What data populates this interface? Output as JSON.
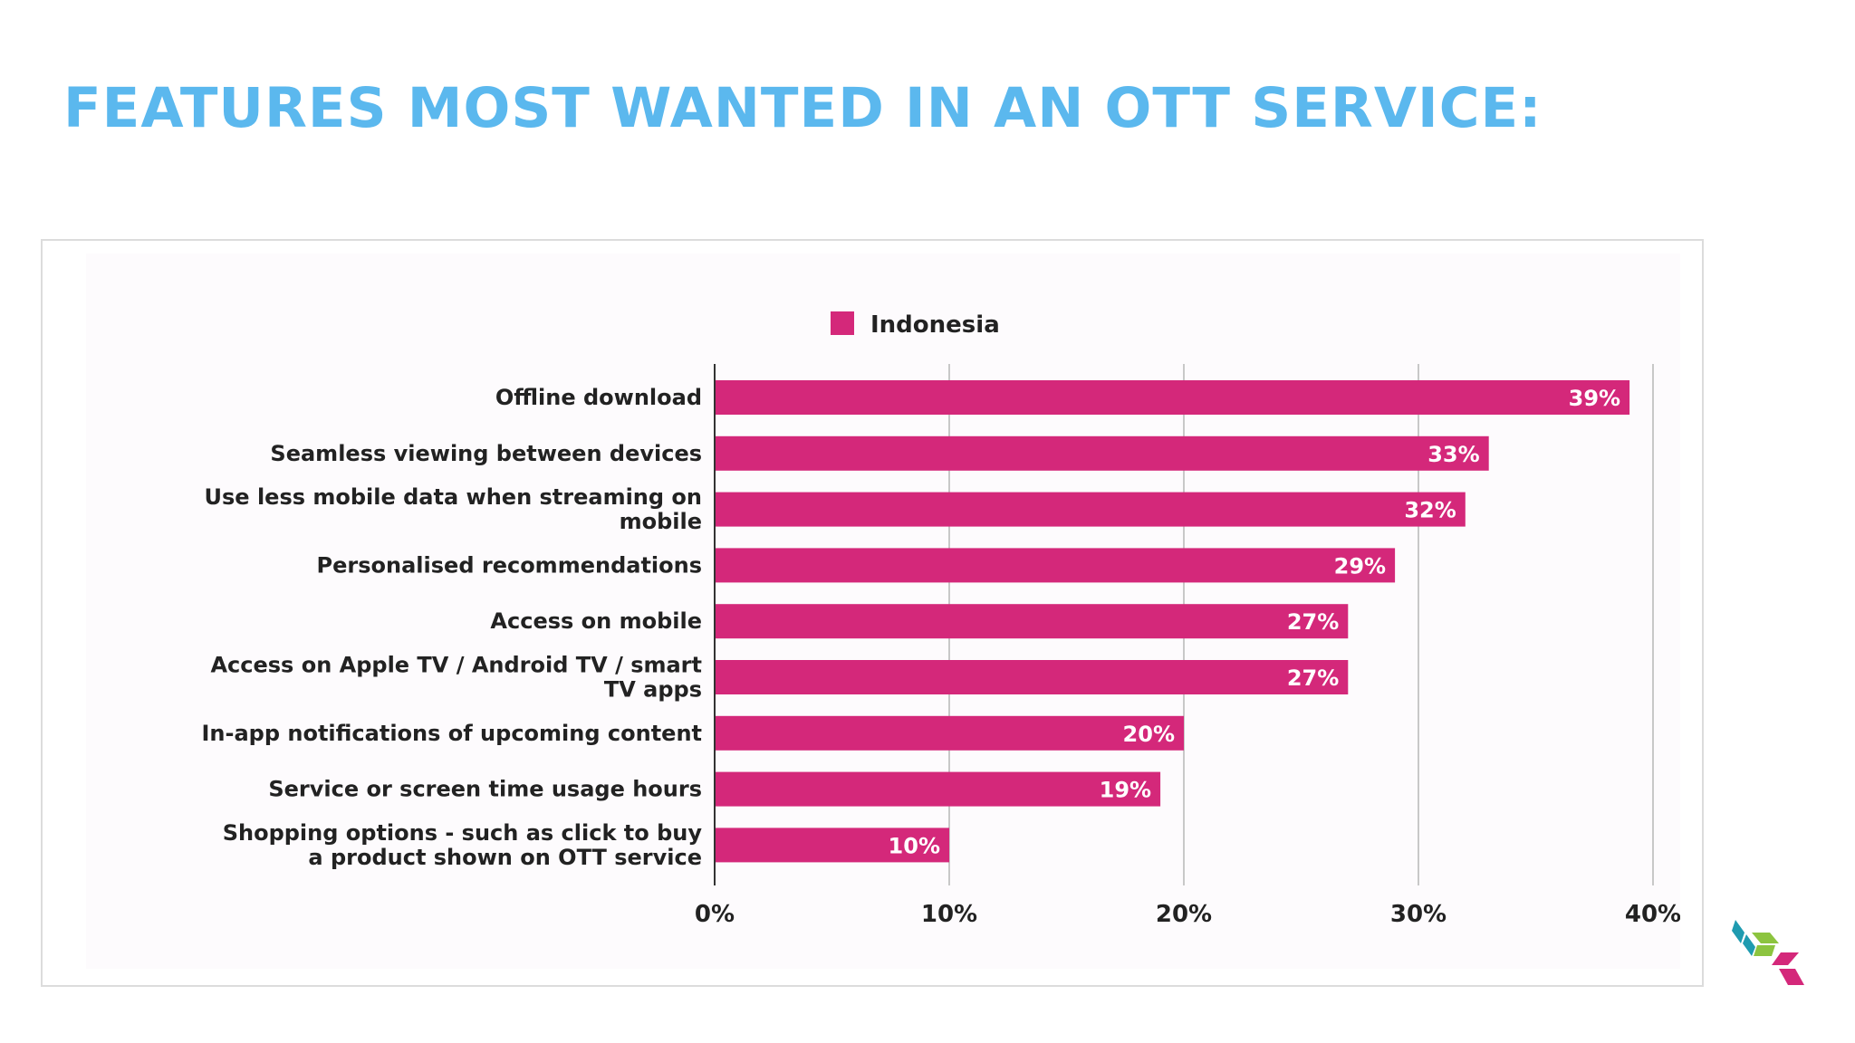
{
  "slide": {
    "title": "FEATURES MOST WANTED IN AN OTT SERVICE:"
  },
  "colors": {
    "title": "#5bb8ee",
    "bar": "#d4287a",
    "gridline": "#c8c8c8",
    "axis": "#333333",
    "logo_teal": "#1f9bb0",
    "logo_green": "#8cc43f",
    "logo_pink": "#d4287a"
  },
  "logo": {
    "icon": "stacked-cubes-logo-icon"
  },
  "chart_data": {
    "type": "bar",
    "orientation": "horizontal",
    "title": "",
    "xlabel": "",
    "ylabel": "",
    "xlim": [
      0,
      40
    ],
    "grid": true,
    "legend_position": "top-center",
    "tick_labels": [
      "0%",
      "10%",
      "20%",
      "30%",
      "40%"
    ],
    "tick_values": [
      0,
      10,
      20,
      30,
      40
    ],
    "categories": [
      "Offline download",
      "Seamless viewing between devices",
      "Use less mobile data when streaming on mobile",
      "Personalised recommendations",
      "Access on mobile",
      "Access on Apple TV / Android TV / smart TV apps",
      "In-app notifications of upcoming content",
      "Service or screen time usage hours",
      "Shopping options - such as click to buy a product shown on OTT service"
    ],
    "category_lines": [
      [
        "Offline download"
      ],
      [
        "Seamless viewing between devices"
      ],
      [
        "Use less mobile data when streaming on",
        "mobile"
      ],
      [
        "Personalised recommendations"
      ],
      [
        "Access on mobile"
      ],
      [
        "Access on Apple TV / Android TV / smart",
        "TV apps"
      ],
      [
        "In-app notifications of upcoming content"
      ],
      [
        "Service or screen time usage hours"
      ],
      [
        "Shopping options - such as click to buy",
        "a product shown on OTT service"
      ]
    ],
    "series": [
      {
        "name": "Indonesia",
        "values": [
          39,
          33,
          32,
          29,
          27,
          27,
          20,
          19,
          10
        ],
        "labels": [
          "39%",
          "33%",
          "32%",
          "29%",
          "27%",
          "27%",
          "20%",
          "19%",
          "10%"
        ]
      }
    ]
  }
}
